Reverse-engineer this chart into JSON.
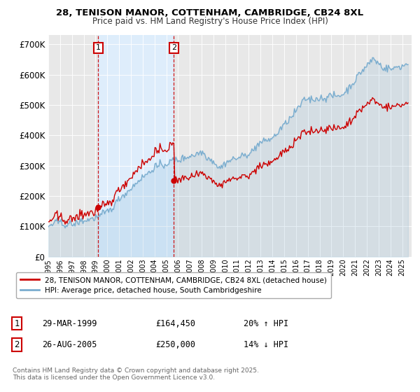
{
  "title_line1": "28, TENISON MANOR, COTTENHAM, CAMBRIDGE, CB24 8XL",
  "title_line2": "Price paid vs. HM Land Registry's House Price Index (HPI)",
  "ylim": [
    0,
    720000
  ],
  "yticks": [
    0,
    100000,
    200000,
    300000,
    400000,
    500000,
    600000,
    700000
  ],
  "ytick_labels": [
    "£0",
    "£100K",
    "£200K",
    "£300K",
    "£400K",
    "£500K",
    "£600K",
    "£700K"
  ],
  "price_paid_color": "#cc0000",
  "hpi_color": "#7aadcf",
  "shade_color": "#ddeeff",
  "transaction1_date": "29-MAR-1999",
  "transaction1_price": "£164,450",
  "transaction1_hpi": "20% ↑ HPI",
  "transaction1_year": 1999.24,
  "transaction2_date": "26-AUG-2005",
  "transaction2_price": "£250,000",
  "transaction2_hpi": "14% ↓ HPI",
  "transaction2_year": 2005.65,
  "transaction1_price_val": 164450,
  "transaction2_price_val": 250000,
  "legend_label_price": "28, TENISON MANOR, COTTENHAM, CAMBRIDGE, CB24 8XL (detached house)",
  "legend_label_hpi": "HPI: Average price, detached house, South Cambridgeshire",
  "footnote": "Contains HM Land Registry data © Crown copyright and database right 2025.\nThis data is licensed under the Open Government Licence v3.0.",
  "background_color": "#ffffff",
  "plot_bg_color": "#e8e8e8"
}
